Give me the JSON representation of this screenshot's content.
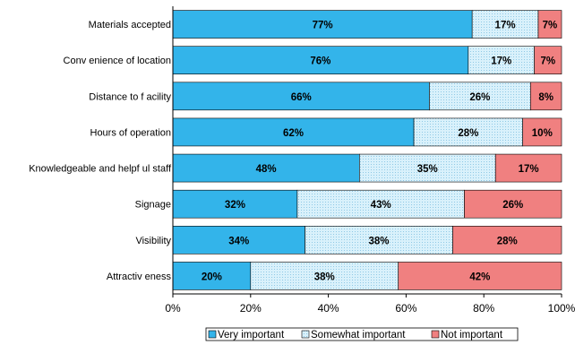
{
  "chart_data": {
    "type": "bar",
    "orientation": "horizontal",
    "stacked": true,
    "categories": [
      "Materials accepted",
      "Convenience of location",
      "Distance to facility",
      "Hours of operation",
      "Knowledgeable and helpful staff",
      "Signage",
      "Visibility",
      "Attractiveness"
    ],
    "category_labels": [
      "Materials accepted",
      "Conv enience of location",
      "Distance to f acility",
      "Hours of operation",
      "Knowledgeable and helpf ul staff",
      "Signage",
      "Visibility",
      "Attractiv eness"
    ],
    "series": [
      {
        "name": "Very important",
        "values": [
          77,
          76,
          66,
          62,
          48,
          32,
          34,
          20
        ],
        "color": "#33b4ea",
        "pattern": "solid"
      },
      {
        "name": "Somewhat important",
        "values": [
          17,
          17,
          26,
          28,
          35,
          43,
          38,
          38
        ],
        "color": "#d9f1fb",
        "pattern": "dotted"
      },
      {
        "name": "Not important",
        "values": [
          7,
          7,
          8,
          10,
          17,
          26,
          28,
          42
        ],
        "color": "#f08080",
        "pattern": "solid"
      }
    ],
    "xlim": [
      0,
      100
    ],
    "x_ticks": [
      "0%",
      "20%",
      "40%",
      "60%",
      "80%",
      "100%"
    ],
    "legend_position": "bottom",
    "grid": false
  }
}
